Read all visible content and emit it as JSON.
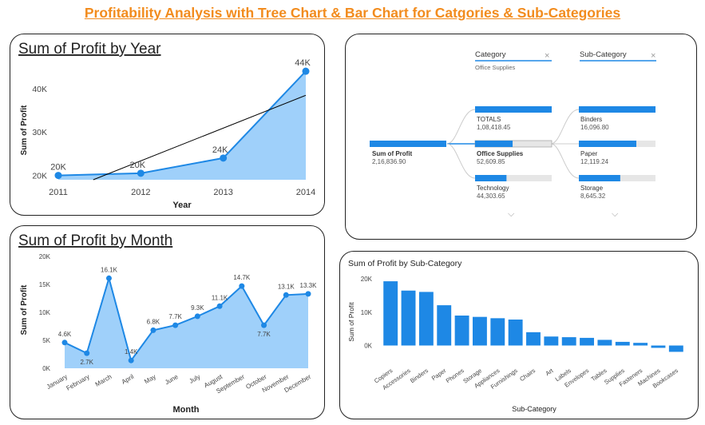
{
  "page": {
    "title": "Profitability Analysis with Tree Chart & Bar Chart for Catgories & Sub-Categories"
  },
  "colors": {
    "accent": "#1e88e5",
    "area": "#9fd0fa",
    "title": "#f28c1e",
    "track": "#e6e6e6",
    "trend": "#000000"
  },
  "year_chart": {
    "chart_data": {
      "type": "line",
      "title": "Sum of Profit by Year",
      "xlabel": "Year",
      "ylabel": "Sum of Profit",
      "x": [
        "2011",
        "2012",
        "2013",
        "2014"
      ],
      "values": [
        20000,
        20500,
        24000,
        44000
      ],
      "value_labels": [
        "20K",
        "20K",
        "24K",
        "44K"
      ],
      "yticks": [
        "20K",
        "30K",
        "40K"
      ],
      "ylim": [
        19000,
        45500
      ],
      "trendline": true,
      "grid": false
    }
  },
  "month_chart": {
    "chart_data": {
      "type": "line",
      "title": "Sum of Profit by Month",
      "xlabel": "Month",
      "ylabel": "Sum of Profit",
      "x": [
        "January",
        "February",
        "March",
        "April",
        "May",
        "June",
        "July",
        "August",
        "September",
        "October",
        "November",
        "December"
      ],
      "values": [
        4600,
        2700,
        16100,
        1400,
        6800,
        7700,
        9300,
        11100,
        14700,
        7700,
        13100,
        13300
      ],
      "value_labels": [
        "4.6K",
        "2.7K",
        "16.1K",
        "1.4K",
        "6.8K",
        "7.7K",
        "9.3K",
        "11.1K",
        "14.7K",
        "7.7K",
        "13.1K",
        "13.3K"
      ],
      "yticks": [
        "0K",
        "5K",
        "10K",
        "15K",
        "20K"
      ],
      "ylim": [
        0,
        20000
      ],
      "grid": false
    }
  },
  "tree": {
    "filters": {
      "category": "Category",
      "category_value": "Office Supplies",
      "subcategory": "Sub-Category"
    },
    "root": {
      "label": "Sum of Profit",
      "value": "2,16,836.90",
      "fill": 1.0
    },
    "categories": [
      {
        "label": "TOTALS",
        "value": "1,08,418.45",
        "fill": 1.0
      },
      {
        "label": "Office Supplies",
        "value": "52,609.85",
        "fill": 0.49
      },
      {
        "label": "Technology",
        "value": "44,303.65",
        "fill": 0.41
      }
    ],
    "subcategories": [
      {
        "label": "Binders",
        "value": "16,096.80",
        "fill": 1.0
      },
      {
        "label": "Paper",
        "value": "12,119.24",
        "fill": 0.75
      },
      {
        "label": "Storage",
        "value": "8,645.32",
        "fill": 0.54
      }
    ]
  },
  "subcat_chart": {
    "chart_data": {
      "type": "bar",
      "title": "Sum of Profit by Sub-Category",
      "xlabel": "Sub-Category",
      "ylabel": "Sum of Profit",
      "categories": [
        "Copiers",
        "Accessories",
        "Binders",
        "Paper",
        "Phones",
        "Storage",
        "Appliances",
        "Furnishings",
        "Chairs",
        "Art",
        "Labels",
        "Envelopes",
        "Tables",
        "Supplies",
        "Fasteners",
        "Machines",
        "Bookcases"
      ],
      "values": [
        19300,
        16500,
        16100,
        12100,
        9000,
        8600,
        8200,
        7800,
        4000,
        2700,
        2500,
        2300,
        1700,
        1100,
        800,
        -700,
        -1900
      ],
      "yticks": [
        {
          "v": 0,
          "label": "0K"
        },
        {
          "v": 10000,
          "label": "10K"
        },
        {
          "v": 20000,
          "label": "20K"
        }
      ],
      "ylim": [
        -3000,
        21000
      ],
      "grid": false
    }
  }
}
